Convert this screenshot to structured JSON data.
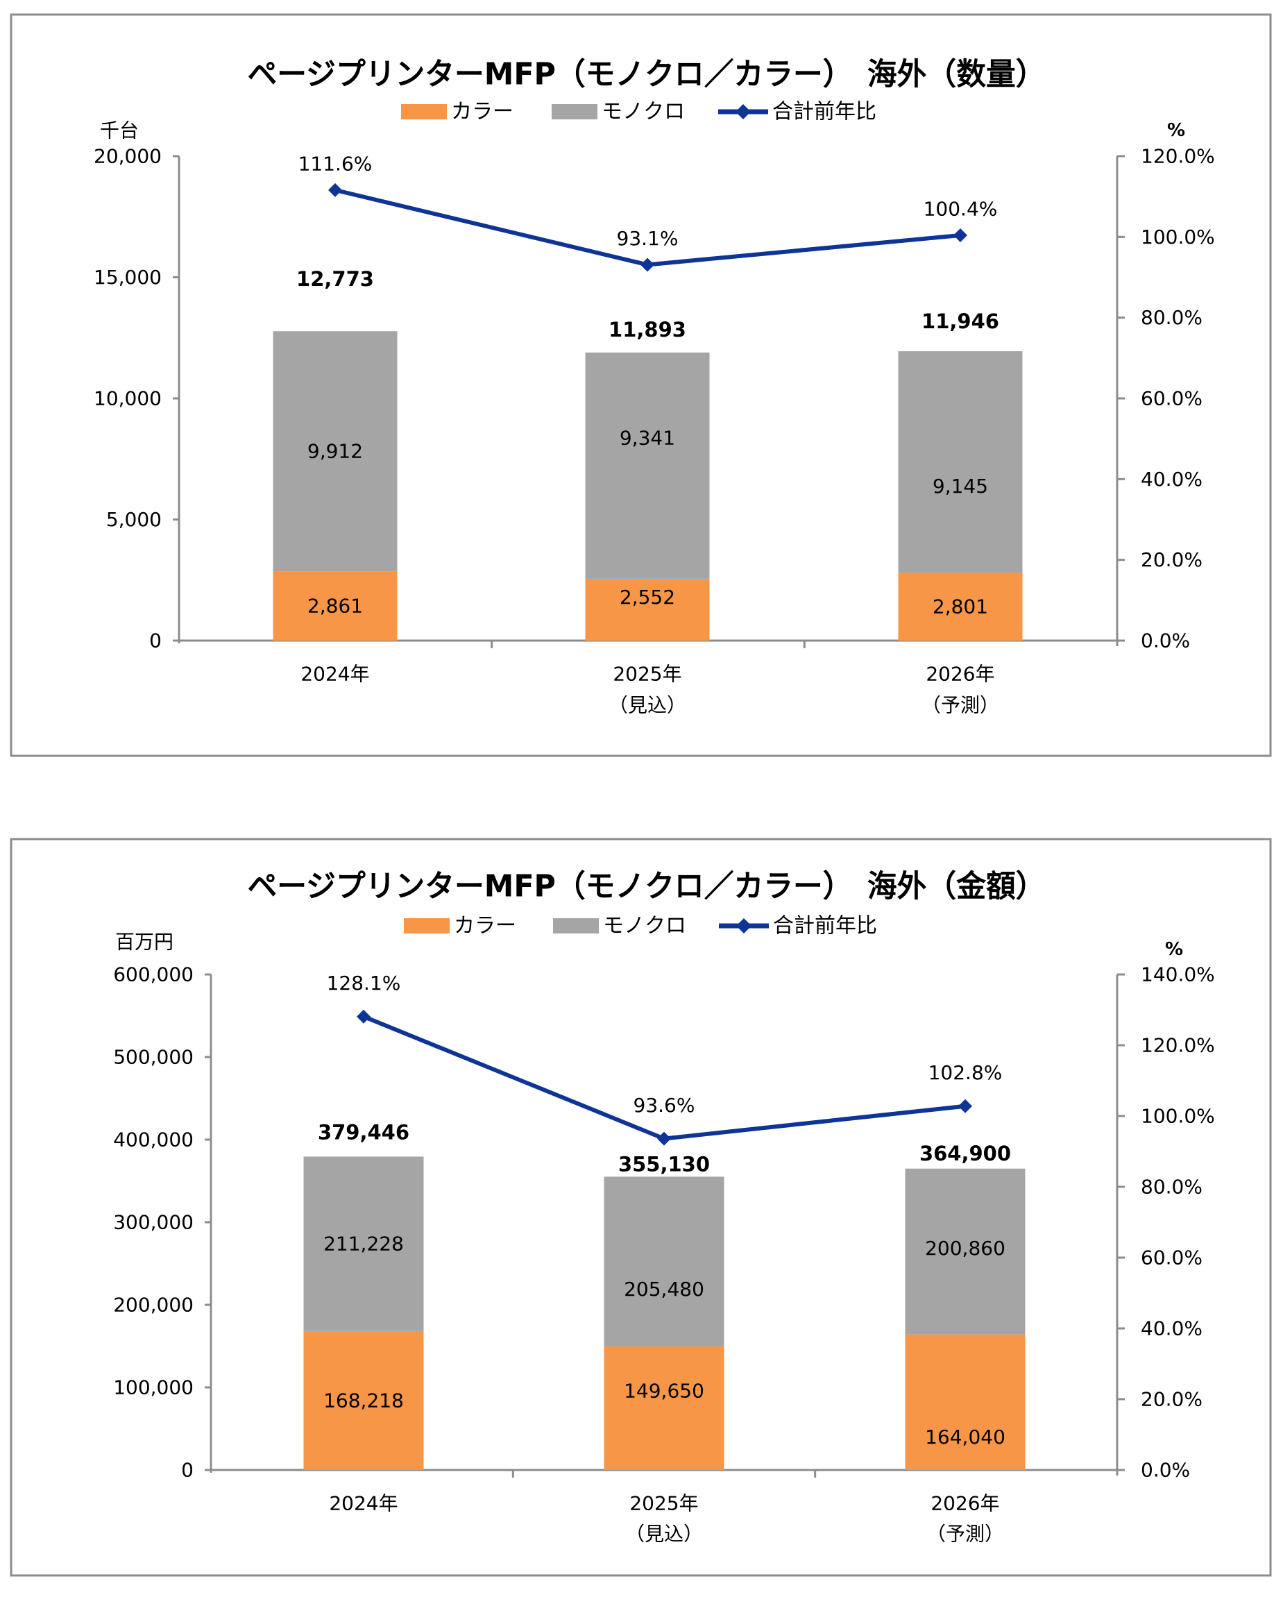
{
  "chart_data": [
    {
      "type": "bar",
      "stacked": true,
      "title": "ページプリンターMFP（モノクロ／カラー）　海外（数量）",
      "ylabel": "千台",
      "y2label": "%",
      "ylim": [
        0,
        20000
      ],
      "y2lim": [
        0,
        120
      ],
      "yticks": [
        "0",
        "5,000",
        "10,000",
        "15,000",
        "20,000"
      ],
      "y2ticks": [
        "0.0%",
        "20.0%",
        "40.0%",
        "60.0%",
        "80.0%",
        "100.0%",
        "120.0%"
      ],
      "categories": [
        {
          "line1": "2024年",
          "line2": ""
        },
        {
          "line1": "2025年",
          "line2": "（見込）"
        },
        {
          "line1": "2026年",
          "line2": "（予測）"
        }
      ],
      "legend": [
        "カラー",
        "モノクロ",
        "合計前年比"
      ],
      "legend_position": "top",
      "grid": false,
      "series": [
        {
          "name": "カラー",
          "color": "#f79646",
          "values": [
            2861,
            2552,
            2801
          ],
          "labels": [
            "2,861",
            "2,552",
            "2,801"
          ]
        },
        {
          "name": "モノクロ",
          "color": "#a5a5a5",
          "values": [
            9912,
            9341,
            9145
          ],
          "labels": [
            "9,912",
            "9,341",
            "9,145"
          ]
        },
        {
          "name": "合計前年比",
          "type": "line",
          "axis": "right",
          "color": "#0e3596",
          "values": [
            111.6,
            93.1,
            100.4
          ],
          "labels": [
            "111.6%",
            "93.1%",
            "100.4%"
          ]
        }
      ],
      "totals": [
        12773,
        11893,
        11946
      ],
      "total_labels": [
        "12,773",
        "11,893",
        "11,946"
      ]
    },
    {
      "type": "bar",
      "stacked": true,
      "title": "ページプリンターMFP（モノクロ／カラー）　海外（金額）",
      "ylabel": "百万円",
      "y2label": "%",
      "ylim": [
        0,
        600000
      ],
      "y2lim": [
        0,
        140
      ],
      "yticks": [
        "0",
        "100,000",
        "200,000",
        "300,000",
        "400,000",
        "500,000",
        "600,000"
      ],
      "y2ticks": [
        "0.0%",
        "20.0%",
        "40.0%",
        "60.0%",
        "80.0%",
        "100.0%",
        "120.0%",
        "140.0%"
      ],
      "categories": [
        {
          "line1": "2024年",
          "line2": ""
        },
        {
          "line1": "2025年",
          "line2": "（見込）"
        },
        {
          "line1": "2026年",
          "line2": "（予測）"
        }
      ],
      "legend": [
        "カラー",
        "モノクロ",
        "合計前年比"
      ],
      "legend_position": "top",
      "grid": false,
      "series": [
        {
          "name": "カラー",
          "color": "#f79646",
          "values": [
            168218,
            149650,
            164040
          ],
          "labels": [
            "168,218",
            "149,650",
            "164,040"
          ]
        },
        {
          "name": "モノクロ",
          "color": "#a5a5a5",
          "values": [
            211228,
            205480,
            200860
          ],
          "labels": [
            "211,228",
            "205,480",
            "200,860"
          ]
        },
        {
          "name": "合計前年比",
          "type": "line",
          "axis": "right",
          "color": "#0e3596",
          "values": [
            128.1,
            93.6,
            102.8
          ],
          "labels": [
            "128.1%",
            "93.6%",
            "102.8%"
          ]
        }
      ],
      "totals": [
        379446,
        355130,
        364900
      ],
      "total_labels": [
        "379,446",
        "355,130",
        "364,900"
      ]
    }
  ]
}
